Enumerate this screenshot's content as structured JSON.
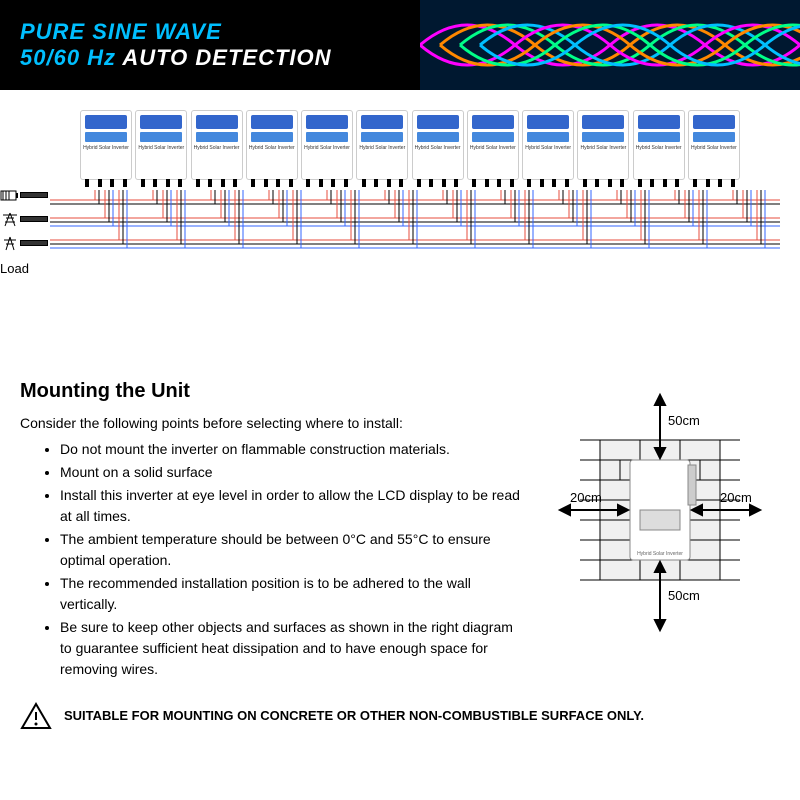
{
  "banner": {
    "line1": "PURE SINE WAVE",
    "line2_cyan": "50/60 Hz",
    "line2_white": " AUTO DETECTION",
    "wave_colors": [
      "#ff00ff",
      "#ff8800",
      "#00ff88",
      "#00bfff"
    ],
    "bg": "#000000"
  },
  "diagram": {
    "inverter_count": 12,
    "inverter_label": "Hybrid Solar Inverter",
    "wire_colors": {
      "red": "#e74c3c",
      "black": "#000000",
      "blue": "#3366ff"
    },
    "load_label": "Load"
  },
  "mounting": {
    "title": "Mounting the Unit",
    "intro": "Consider the following points before selecting where to install:",
    "bullets": [
      "Do not mount the inverter on flammable construction materials.",
      "Mount on a solid surface",
      "Install this inverter at eye level in order to allow the LCD display to be read at all times.",
      "The ambient temperature should be between 0°C and 55°C to ensure optimal operation.",
      "The recommended installation position is to be adhered to the wall vertically.",
      "Be sure to keep other objects and surfaces as shown in the right diagram to guarantee sufficient heat dissipation and to have enough space for removing wires."
    ],
    "clearances": {
      "top": "50cm",
      "bottom": "50cm",
      "left": "20cm",
      "right": "20cm"
    }
  },
  "warning": {
    "text": "SUITABLE FOR MOUNTING ON CONCRETE OR OTHER NON-COMBUSTIBLE SURFACE ONLY."
  }
}
